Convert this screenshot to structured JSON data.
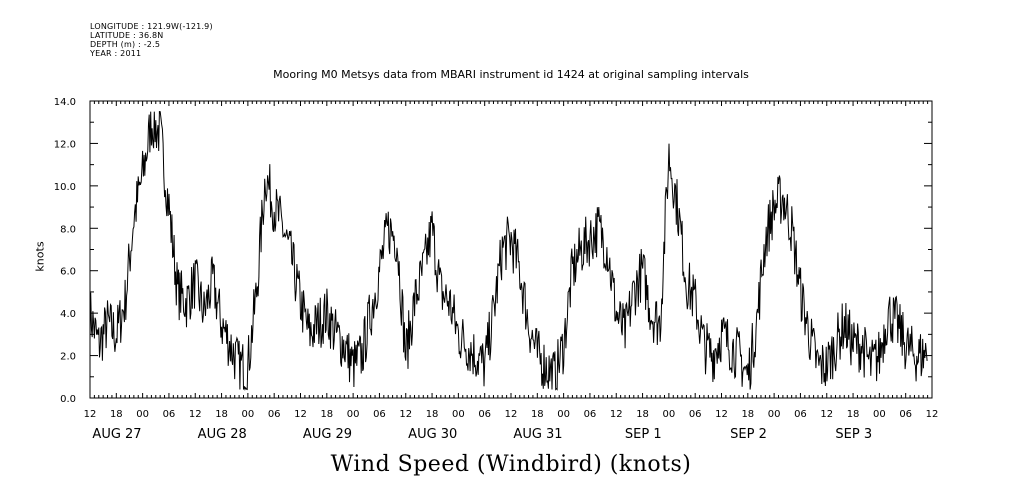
{
  "header": {
    "longitude": "LONGITUDE : 121.9W(-121.9)",
    "latitude": "LATITUDE : 36.8N",
    "depth": "DEPTH (m) : -2.5",
    "year": "YEAR : 2011"
  },
  "chart_data": {
    "type": "line",
    "title": "Mooring M0 Metsys data from MBARI instrument id 1424 at original sampling intervals",
    "xlabel": "Wind Speed (Windbird) (knots)",
    "ylabel": "knots",
    "ylim": [
      0,
      14
    ],
    "yticks": [
      "0.0",
      "2.0",
      "4.0",
      "6.0",
      "8.0",
      "10.0",
      "12.0",
      "14.0"
    ],
    "xlim_hours": [
      12,
      204
    ],
    "hour_tick_labels": [
      "12",
      "18",
      "00",
      "06",
      "12",
      "18",
      "00",
      "06",
      "12",
      "18",
      "00",
      "06",
      "12",
      "18",
      "00",
      "06",
      "12",
      "18",
      "00",
      "06",
      "12",
      "18",
      "00",
      "06",
      "12",
      "18",
      "00",
      "06",
      "12",
      "18",
      "00",
      "06",
      "12"
    ],
    "day_labels": [
      {
        "label": "AUG 27",
        "hour": 12
      },
      {
        "label": "AUG 28",
        "hour": 36
      },
      {
        "label": "AUG 29",
        "hour": 60
      },
      {
        "label": "AUG 30",
        "hour": 84
      },
      {
        "label": "AUG 31",
        "hour": 108
      },
      {
        "label": "SEP  1",
        "hour": 132
      },
      {
        "label": "SEP  2",
        "hour": 156
      },
      {
        "label": "SEP  3",
        "hour": 180
      }
    ],
    "grid": false,
    "series": [
      {
        "name": "",
        "x_hours": [
          12,
          14,
          16,
          18,
          20,
          22,
          24,
          26,
          28,
          30,
          32,
          34,
          36,
          38,
          40,
          42,
          44,
          46,
          48,
          50,
          52,
          54,
          56,
          58,
          60,
          62,
          64,
          66,
          68,
          70,
          72,
          74,
          76,
          78,
          80,
          82,
          84,
          86,
          88,
          90,
          92,
          94,
          96,
          98,
          100,
          102,
          104,
          106,
          108,
          110,
          112,
          114,
          116,
          118,
          120,
          122,
          124,
          126,
          128,
          130,
          132,
          134,
          136,
          138,
          140,
          142,
          144,
          146,
          148,
          150,
          152,
          154,
          156,
          158,
          160,
          162,
          164,
          166,
          168,
          170,
          172,
          174,
          176,
          178,
          180,
          182,
          184,
          186,
          188,
          190,
          192,
          194,
          196,
          198,
          200,
          202,
          204
        ],
        "values": [
          4.0,
          2.5,
          3.5,
          3.0,
          4.5,
          8.5,
          10.5,
          13.0,
          12.5,
          9.0,
          5.0,
          4.5,
          5.5,
          4.0,
          5.5,
          3.5,
          2.5,
          1.5,
          1.5,
          5.0,
          10.5,
          9.0,
          8.0,
          6.5,
          4.5,
          3.0,
          3.5,
          4.0,
          3.0,
          2.5,
          1.5,
          2.0,
          4.0,
          6.0,
          8.0,
          7.5,
          2.0,
          4.5,
          6.0,
          8.0,
          5.0,
          4.5,
          3.0,
          2.5,
          2.0,
          1.5,
          4.0,
          7.0,
          7.5,
          6.0,
          3.5,
          2.0,
          1.5,
          1.0,
          2.5,
          6.0,
          7.0,
          7.5,
          8.0,
          7.0,
          4.0,
          3.0,
          5.0,
          6.0,
          4.0,
          3.5,
          11.5,
          9.0,
          5.5,
          4.5,
          2.5,
          2.0,
          3.0,
          2.5,
          2.0,
          1.0,
          3.5,
          7.5,
          9.0,
          9.5,
          8.0,
          5.0,
          3.0,
          1.5,
          1.5,
          2.5,
          3.5,
          2.5,
          2.5,
          1.5,
          2.0,
          4.0,
          3.5,
          2.5,
          2.0,
          2.0,
          2.5
        ]
      }
    ]
  }
}
